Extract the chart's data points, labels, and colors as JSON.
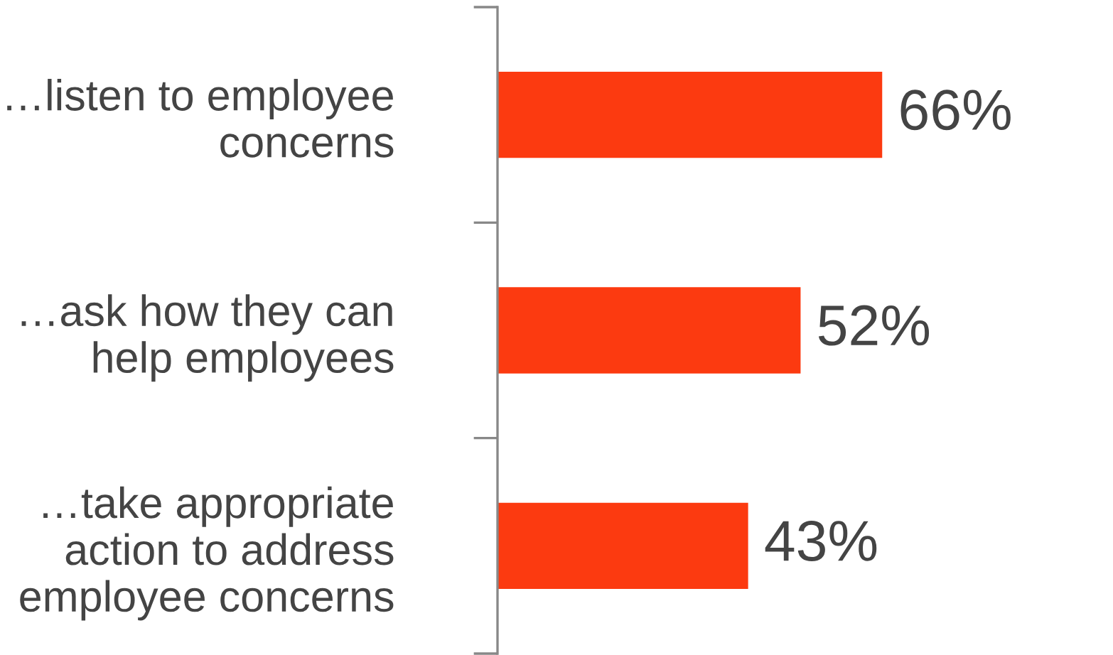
{
  "chart_data": {
    "type": "bar",
    "orientation": "horizontal",
    "categories": [
      "…listen to employee\nconcerns",
      "…ask how they can\nhelp employees",
      "…take appropriate\naction to address\nemployee concerns"
    ],
    "values": [
      66,
      52,
      43
    ],
    "value_labels": [
      "66%",
      "52%",
      "43%"
    ],
    "color": "#fc3a10",
    "grid": false,
    "legend": false,
    "tick_labels": "y"
  }
}
